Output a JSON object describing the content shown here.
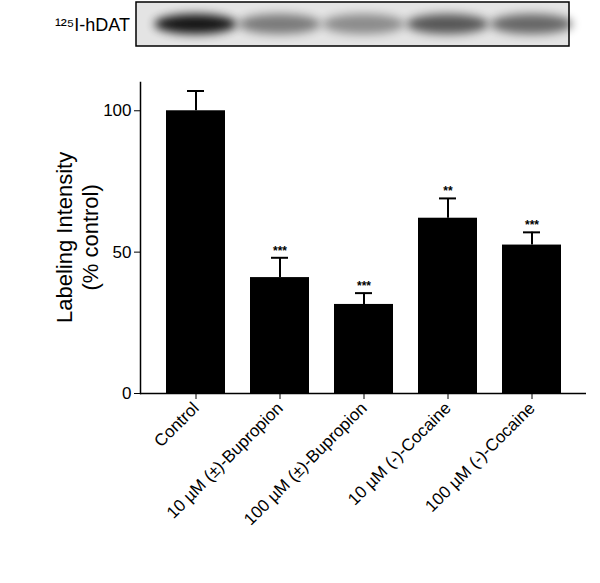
{
  "chart_data": {
    "type": "bar",
    "blot_label": "¹²⁵I-hDAT",
    "y_label": "Labeling Intensity\n(% control)",
    "categories": [
      "Control",
      "10 µM (±)-Bupropion",
      "100 µM (±)-Bupropion",
      "10 µM (-)-Cocaine",
      "100 µM (-)-Cocaine"
    ],
    "values": [
      100,
      41,
      31.5,
      62,
      52.5
    ],
    "errors": [
      7,
      7,
      4,
      7,
      4.5
    ],
    "significance": [
      null,
      "***",
      "***",
      "**",
      "***"
    ],
    "color": "#000000",
    "ylim": [
      0,
      110
    ],
    "yticks": [
      0,
      50,
      100
    ]
  }
}
